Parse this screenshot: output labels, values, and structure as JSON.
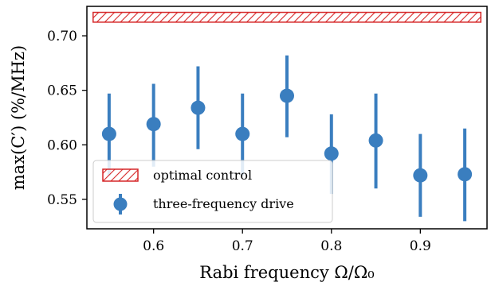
{
  "chart_data": {
    "type": "scatter",
    "xlabel": "Rabi frequency Ω/Ω₀",
    "ylabel": "max(C′) (%/MHz)",
    "xlim": [
      0.525,
      0.975
    ],
    "ylim": [
      0.523,
      0.727
    ],
    "xticks": [
      {
        "value": 0.6,
        "label": "0.6"
      },
      {
        "value": 0.7,
        "label": "0.7"
      },
      {
        "value": 0.8,
        "label": "0.8"
      },
      {
        "value": 0.9,
        "label": "0.9"
      }
    ],
    "yticks": [
      {
        "value": 0.55,
        "label": "0.55"
      },
      {
        "value": 0.6,
        "label": "0.60"
      },
      {
        "value": 0.65,
        "label": "0.65"
      },
      {
        "value": 0.7,
        "label": "0.70"
      }
    ],
    "legend_position": "lower-left",
    "series": [
      {
        "name": "optimal control",
        "kind": "hatched-band",
        "color": "#d62728",
        "x_range": [
          0.532,
          0.968
        ],
        "y_range": [
          0.7125,
          0.7215
        ]
      },
      {
        "name": "three-frequency drive",
        "kind": "points-with-errorbars",
        "color": "#3a7ebf",
        "points": [
          {
            "x": 0.55,
            "y": 0.61,
            "low": 0.572,
            "high": 0.647
          },
          {
            "x": 0.6,
            "y": 0.619,
            "low": 0.58,
            "high": 0.656
          },
          {
            "x": 0.65,
            "y": 0.634,
            "low": 0.596,
            "high": 0.672
          },
          {
            "x": 0.7,
            "y": 0.61,
            "low": 0.572,
            "high": 0.647
          },
          {
            "x": 0.75,
            "y": 0.645,
            "low": 0.607,
            "high": 0.682
          },
          {
            "x": 0.8,
            "y": 0.592,
            "low": 0.555,
            "high": 0.628
          },
          {
            "x": 0.85,
            "y": 0.604,
            "low": 0.56,
            "high": 0.647
          },
          {
            "x": 0.9,
            "y": 0.572,
            "low": 0.534,
            "high": 0.61
          },
          {
            "x": 0.95,
            "y": 0.573,
            "low": 0.53,
            "high": 0.615
          }
        ]
      }
    ]
  }
}
